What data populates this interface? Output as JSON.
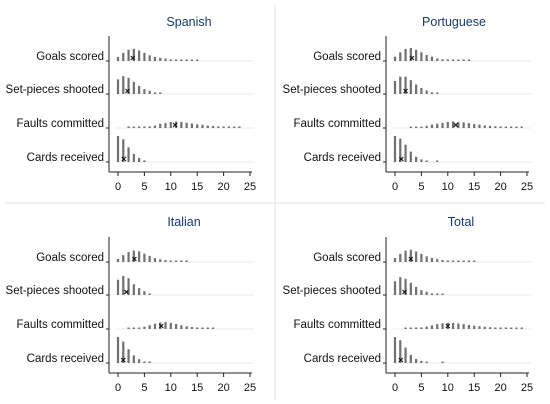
{
  "chart_data": [
    {
      "type": "bar",
      "title": "Spanish",
      "categories": [
        "Goals scored",
        "Set-pieces shooted",
        "Faults committed",
        "Cards received"
      ],
      "x": [
        0,
        1,
        2,
        3,
        4,
        5,
        6,
        7,
        8,
        9,
        10,
        11,
        12,
        13,
        14,
        15,
        16,
        17,
        18,
        19,
        20,
        21,
        22,
        23,
        24
      ],
      "series": [
        {
          "name": "Goals scored",
          "values": [
            0.05,
            0.1,
            0.14,
            0.15,
            0.13,
            0.1,
            0.07,
            0.05,
            0.04,
            0.03,
            0.02,
            0.015,
            0.01,
            0.01,
            0.008,
            0.005,
            0,
            0,
            0,
            0,
            0,
            0,
            0,
            0,
            0
          ],
          "mean": 2.8
        },
        {
          "name": "Set-pieces shooted",
          "values": [
            0.18,
            0.22,
            0.2,
            0.15,
            0.1,
            0.06,
            0.04,
            0.02,
            0.01,
            0,
            0,
            0,
            0,
            0,
            0,
            0,
            0,
            0,
            0,
            0,
            0,
            0,
            0,
            0,
            0
          ],
          "mean": 1.8
        },
        {
          "name": "Faults committed",
          "values": [
            0,
            0,
            0.002,
            0.005,
            0.01,
            0.015,
            0.02,
            0.03,
            0.05,
            0.06,
            0.075,
            0.08,
            0.075,
            0.065,
            0.055,
            0.045,
            0.04,
            0.03,
            0.025,
            0.02,
            0.015,
            0.01,
            0.008,
            0.005,
            0
          ],
          "mean": 10.8
        },
        {
          "name": "Cards received",
          "values": [
            0.32,
            0.28,
            0.18,
            0.1,
            0.05,
            0.02,
            0,
            0,
            0,
            0,
            0,
            0,
            0,
            0,
            0,
            0,
            0,
            0,
            0,
            0,
            0,
            0,
            0,
            0,
            0
          ],
          "mean": 1.1
        }
      ],
      "xlim": [
        0,
        25
      ],
      "xticks": [
        "0",
        "5",
        "10",
        "15",
        "20",
        "25"
      ]
    },
    {
      "type": "bar",
      "title": "Portuguese",
      "categories": [
        "Goals scored",
        "Set-pieces shooted",
        "Faults committed",
        "Cards received"
      ],
      "x": [
        0,
        1,
        2,
        3,
        4,
        5,
        6,
        7,
        8,
        9,
        10,
        11,
        12,
        13,
        14,
        15,
        16,
        17,
        18,
        19,
        20,
        21,
        22,
        23,
        24
      ],
      "series": [
        {
          "name": "Goals scored",
          "values": [
            0.05,
            0.1,
            0.14,
            0.15,
            0.13,
            0.1,
            0.07,
            0.05,
            0.03,
            0.02,
            0.015,
            0.01,
            0.008,
            0.006,
            0.004,
            0,
            0,
            0,
            0,
            0,
            0,
            0,
            0,
            0,
            0
          ],
          "mean": 3.2
        },
        {
          "name": "Set-pieces shooted",
          "values": [
            0.15,
            0.2,
            0.2,
            0.16,
            0.11,
            0.07,
            0.04,
            0.02,
            0.01,
            0,
            0,
            0,
            0,
            0,
            0,
            0,
            0,
            0,
            0,
            0,
            0,
            0,
            0,
            0,
            0
          ],
          "mean": 2.0
        },
        {
          "name": "Faults committed",
          "values": [
            0,
            0,
            0,
            0.003,
            0.008,
            0.015,
            0.025,
            0.04,
            0.05,
            0.06,
            0.07,
            0.075,
            0.07,
            0.065,
            0.055,
            0.045,
            0.04,
            0.03,
            0.025,
            0.02,
            0.015,
            0.01,
            0.008,
            0.006,
            0.004
          ],
          "mean": 11.5
        },
        {
          "name": "Cards received",
          "values": [
            0.3,
            0.27,
            0.2,
            0.12,
            0.06,
            0.03,
            0.015,
            0,
            0.005,
            0,
            0,
            0,
            0,
            0,
            0,
            0,
            0,
            0,
            0,
            0,
            0,
            0,
            0,
            0,
            0
          ],
          "mean": 1.2
        }
      ],
      "xlim": [
        0,
        25
      ],
      "xticks": [
        "0",
        "5",
        "10",
        "15",
        "20",
        "25"
      ]
    },
    {
      "type": "bar",
      "title": "Italian",
      "categories": [
        "Goals scored",
        "Set-pieces shooted",
        "Faults committed",
        "Cards received"
      ],
      "x": [
        0,
        1,
        2,
        3,
        4,
        5,
        6,
        7,
        8,
        9,
        10,
        11,
        12,
        13,
        14,
        15,
        16,
        17,
        18,
        19,
        20,
        21,
        22,
        23,
        24
      ],
      "series": [
        {
          "name": "Goals scored",
          "values": [
            0.04,
            0.09,
            0.13,
            0.15,
            0.14,
            0.11,
            0.08,
            0.05,
            0.035,
            0.025,
            0.015,
            0.008,
            0.005,
            0.004,
            0,
            0,
            0,
            0,
            0,
            0,
            0,
            0,
            0,
            0,
            0
          ],
          "mean": 3.1
        },
        {
          "name": "Set-pieces shooted",
          "values": [
            0.2,
            0.25,
            0.22,
            0.14,
            0.09,
            0.05,
            0.02,
            0,
            0,
            0,
            0,
            0,
            0,
            0,
            0,
            0,
            0,
            0,
            0,
            0,
            0,
            0,
            0,
            0,
            0
          ],
          "mean": 1.6
        },
        {
          "name": "Faults committed",
          "values": [
            0,
            0,
            0.002,
            0.006,
            0.015,
            0.03,
            0.05,
            0.07,
            0.085,
            0.09,
            0.08,
            0.065,
            0.05,
            0.035,
            0.025,
            0.015,
            0.01,
            0.008,
            0.005,
            0,
            0,
            0,
            0,
            0,
            0
          ],
          "mean": 8.2
        },
        {
          "name": "Cards received",
          "values": [
            0.34,
            0.28,
            0.18,
            0.1,
            0.05,
            0.02,
            0.01,
            0,
            0,
            0,
            0,
            0,
            0,
            0,
            0,
            0,
            0,
            0,
            0,
            0,
            0,
            0,
            0,
            0,
            0
          ],
          "mean": 1.0
        }
      ],
      "xlim": [
        0,
        25
      ],
      "xticks": [
        "0",
        "5",
        "10",
        "15",
        "20",
        "25"
      ]
    },
    {
      "type": "bar",
      "title": "Total",
      "categories": [
        "Goals scored",
        "Set-pieces shooted",
        "Faults committed",
        "Cards received"
      ],
      "x": [
        0,
        1,
        2,
        3,
        4,
        5,
        6,
        7,
        8,
        9,
        10,
        11,
        12,
        13,
        14,
        15,
        16,
        17,
        18,
        19,
        20,
        21,
        22,
        23,
        24
      ],
      "series": [
        {
          "name": "Goals scored",
          "values": [
            0.05,
            0.1,
            0.14,
            0.15,
            0.13,
            0.1,
            0.07,
            0.05,
            0.035,
            0.025,
            0.018,
            0.012,
            0.008,
            0.006,
            0.004,
            0.003,
            0,
            0,
            0,
            0,
            0,
            0,
            0,
            0,
            0
          ],
          "mean": 3.0
        },
        {
          "name": "Set-pieces shooted",
          "values": [
            0.17,
            0.22,
            0.2,
            0.15,
            0.1,
            0.06,
            0.04,
            0.02,
            0.01,
            0.005,
            0,
            0,
            0,
            0,
            0,
            0,
            0,
            0,
            0,
            0,
            0,
            0,
            0,
            0,
            0
          ],
          "mean": 1.8
        },
        {
          "name": "Faults committed",
          "values": [
            0,
            0,
            0.002,
            0.005,
            0.01,
            0.02,
            0.03,
            0.045,
            0.06,
            0.07,
            0.075,
            0.075,
            0.068,
            0.06,
            0.05,
            0.042,
            0.035,
            0.028,
            0.022,
            0.017,
            0.012,
            0.009,
            0.006,
            0.004,
            0.003
          ],
          "mean": 10.0
        },
        {
          "name": "Cards received",
          "values": [
            0.32,
            0.28,
            0.19,
            0.1,
            0.05,
            0.025,
            0.01,
            0,
            0,
            0.004,
            0,
            0,
            0,
            0,
            0,
            0,
            0,
            0,
            0,
            0,
            0,
            0,
            0,
            0,
            0
          ],
          "mean": 1.1
        }
      ],
      "xlim": [
        0,
        25
      ],
      "xticks": [
        "0",
        "5",
        "10",
        "15",
        "20",
        "25"
      ]
    }
  ],
  "colors": {
    "bars": "#707070",
    "mean_marker": "#111111",
    "axis": "#222222",
    "gridline": "#e6ecef",
    "panel_title": "#1a3a6b",
    "divider": "#e3e3e3"
  }
}
